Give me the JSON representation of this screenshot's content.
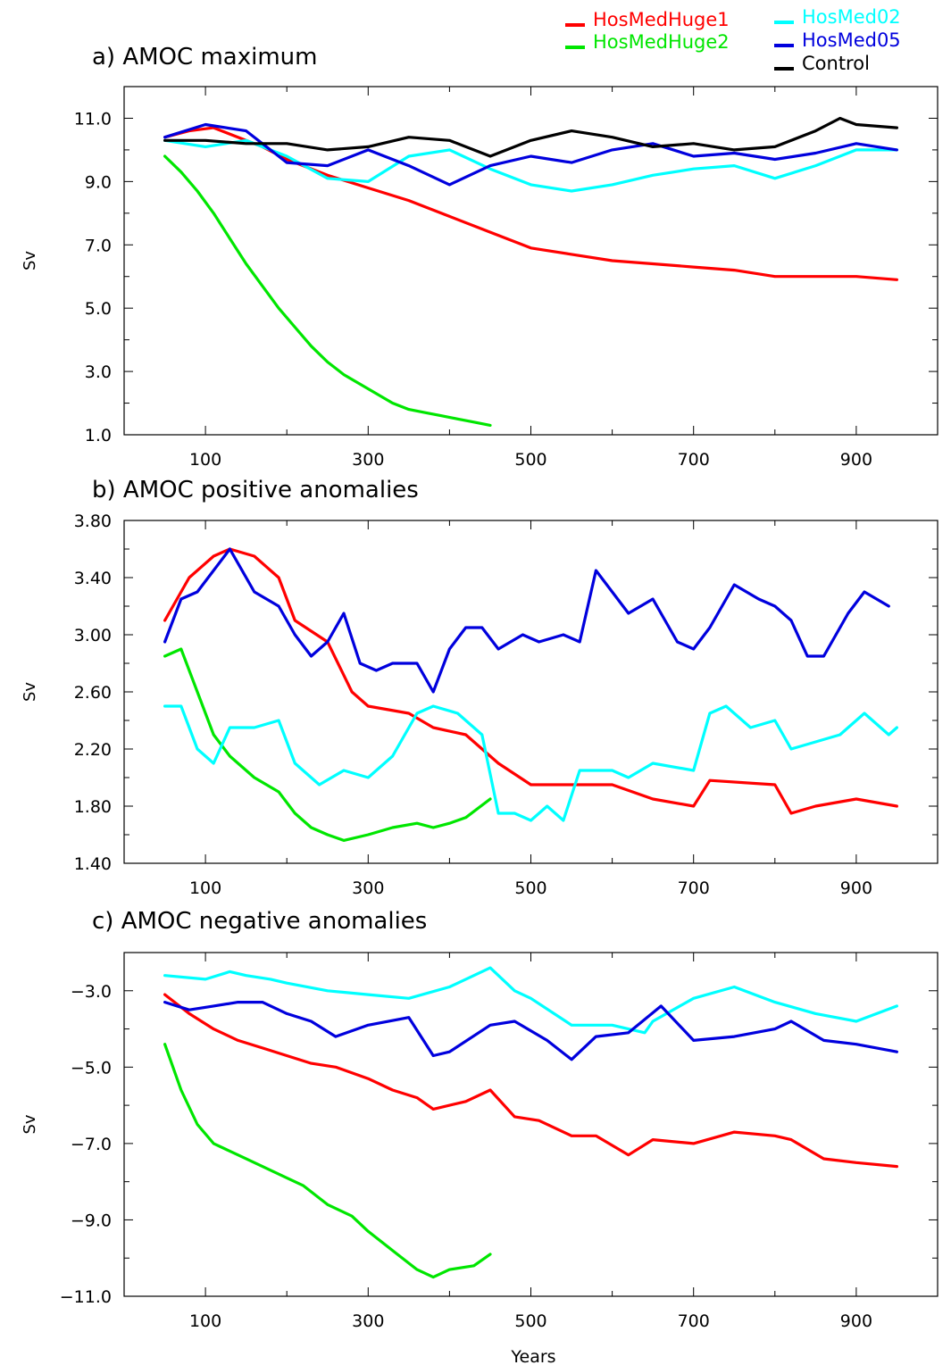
{
  "legend": {
    "items": [
      {
        "label": "HosMedHuge1",
        "color": "#ff0000"
      },
      {
        "label": "HosMedHuge2",
        "color": "#00e600"
      },
      {
        "label": "HosMed02",
        "color": "#00ffff"
      },
      {
        "label": "HosMed05",
        "color": "#0000dd"
      },
      {
        "label": "Control",
        "color": "#000000"
      }
    ],
    "placement": "top-right"
  },
  "chart_data": [
    {
      "type": "line",
      "title": "a) AMOC maximum",
      "xlabel": "",
      "ylabel": "Sv",
      "xlim": [
        0,
        1000
      ],
      "ylim": [
        1.0,
        12.0
      ],
      "xticks": [
        100,
        300,
        500,
        700,
        900
      ],
      "yticks": [
        1.0,
        3.0,
        5.0,
        7.0,
        9.0,
        11.0
      ],
      "ytick_labels": [
        "1.0",
        "3.0",
        "5.0",
        "7.0",
        "9.0",
        "11.0"
      ],
      "grid": false,
      "series": [
        {
          "name": "HosMedHuge1",
          "color": "#ff0000",
          "x": [
            50,
            80,
            110,
            140,
            170,
            200,
            250,
            300,
            350,
            400,
            450,
            500,
            550,
            600,
            650,
            700,
            750,
            800,
            850,
            900,
            950
          ],
          "y": [
            10.4,
            10.6,
            10.7,
            10.4,
            10.1,
            9.7,
            9.2,
            8.8,
            8.4,
            7.9,
            7.4,
            6.9,
            6.7,
            6.5,
            6.4,
            6.3,
            6.2,
            6.0,
            6.0,
            6.0,
            5.9
          ]
        },
        {
          "name": "HosMedHuge2",
          "color": "#00e600",
          "x": [
            50,
            70,
            90,
            110,
            130,
            150,
            170,
            190,
            210,
            230,
            250,
            270,
            290,
            310,
            330,
            350,
            370,
            390,
            410,
            430,
            450
          ],
          "y": [
            9.8,
            9.3,
            8.7,
            8.0,
            7.2,
            6.4,
            5.7,
            5.0,
            4.4,
            3.8,
            3.3,
            2.9,
            2.6,
            2.3,
            2.0,
            1.8,
            1.7,
            1.6,
            1.5,
            1.4,
            1.3
          ]
        },
        {
          "name": "HosMed02",
          "color": "#00ffff",
          "x": [
            50,
            100,
            150,
            200,
            250,
            300,
            350,
            400,
            450,
            500,
            550,
            600,
            650,
            700,
            750,
            800,
            850,
            900,
            950
          ],
          "y": [
            10.3,
            10.1,
            10.3,
            9.8,
            9.1,
            9.0,
            9.8,
            10.0,
            9.4,
            8.9,
            8.7,
            8.9,
            9.2,
            9.4,
            9.5,
            9.1,
            9.5,
            10.0,
            10.0
          ]
        },
        {
          "name": "HosMed05",
          "color": "#0000dd",
          "x": [
            50,
            100,
            150,
            200,
            250,
            300,
            350,
            400,
            450,
            500,
            550,
            600,
            650,
            700,
            750,
            800,
            850,
            900,
            950
          ],
          "y": [
            10.4,
            10.8,
            10.6,
            9.6,
            9.5,
            10.0,
            9.5,
            8.9,
            9.5,
            9.8,
            9.6,
            10.0,
            10.2,
            9.8,
            9.9,
            9.7,
            9.9,
            10.2,
            10.0
          ]
        },
        {
          "name": "Control",
          "color": "#000000",
          "x": [
            50,
            100,
            150,
            200,
            250,
            300,
            350,
            400,
            450,
            500,
            550,
            600,
            650,
            700,
            750,
            800,
            850,
            880,
            900,
            950
          ],
          "y": [
            10.3,
            10.3,
            10.2,
            10.2,
            10.0,
            10.1,
            10.4,
            10.3,
            9.8,
            10.3,
            10.6,
            10.4,
            10.1,
            10.2,
            10.0,
            10.1,
            10.6,
            11.0,
            10.8,
            10.7
          ]
        }
      ]
    },
    {
      "type": "line",
      "title": "b) AMOC positive anomalies",
      "xlabel": "",
      "ylabel": "Sv",
      "xlim": [
        0,
        1000
      ],
      "ylim": [
        1.4,
        3.8
      ],
      "xticks": [
        100,
        300,
        500,
        700,
        900
      ],
      "yticks": [
        1.4,
        1.8,
        2.2,
        2.6,
        3.0,
        3.4,
        3.8
      ],
      "ytick_labels": [
        "1.40",
        "1.80",
        "2.20",
        "2.60",
        "3.00",
        "3.40",
        "3.80"
      ],
      "grid": false,
      "series": [
        {
          "name": "HosMedHuge1",
          "color": "#ff0000",
          "x": [
            50,
            80,
            110,
            130,
            160,
            190,
            210,
            250,
            280,
            300,
            350,
            380,
            420,
            460,
            500,
            550,
            600,
            650,
            700,
            720,
            800,
            820,
            850,
            900,
            950
          ],
          "y": [
            3.1,
            3.4,
            3.55,
            3.6,
            3.55,
            3.4,
            3.1,
            2.95,
            2.6,
            2.5,
            2.45,
            2.35,
            2.3,
            2.1,
            1.95,
            1.95,
            1.95,
            1.85,
            1.8,
            1.98,
            1.95,
            1.75,
            1.8,
            1.85,
            1.8
          ]
        },
        {
          "name": "HosMedHuge2",
          "color": "#00e600",
          "x": [
            50,
            70,
            90,
            110,
            130,
            160,
            190,
            210,
            230,
            250,
            270,
            300,
            330,
            360,
            380,
            400,
            420,
            450
          ],
          "y": [
            2.85,
            2.9,
            2.6,
            2.3,
            2.15,
            2.0,
            1.9,
            1.75,
            1.65,
            1.6,
            1.56,
            1.6,
            1.65,
            1.68,
            1.65,
            1.68,
            1.72,
            1.85
          ]
        },
        {
          "name": "HosMed02",
          "color": "#00ffff",
          "x": [
            50,
            70,
            90,
            110,
            130,
            160,
            190,
            210,
            240,
            270,
            300,
            330,
            360,
            380,
            410,
            440,
            460,
            480,
            500,
            520,
            540,
            560,
            600,
            620,
            650,
            700,
            720,
            740,
            770,
            800,
            820,
            850,
            880,
            910,
            940,
            950
          ],
          "y": [
            2.5,
            2.5,
            2.2,
            2.1,
            2.35,
            2.35,
            2.4,
            2.1,
            1.95,
            2.05,
            2.0,
            2.15,
            2.45,
            2.5,
            2.45,
            2.3,
            1.75,
            1.75,
            1.7,
            1.8,
            1.7,
            2.05,
            2.05,
            2.0,
            2.1,
            2.05,
            2.45,
            2.5,
            2.35,
            2.4,
            2.2,
            2.25,
            2.3,
            2.45,
            2.3,
            2.35
          ]
        },
        {
          "name": "HosMed05",
          "color": "#0000dd",
          "x": [
            50,
            70,
            90,
            110,
            130,
            160,
            190,
            210,
            230,
            250,
            270,
            290,
            310,
            330,
            360,
            380,
            400,
            420,
            440,
            460,
            490,
            510,
            540,
            560,
            580,
            600,
            620,
            650,
            680,
            700,
            720,
            750,
            780,
            800,
            820,
            840,
            860,
            890,
            910,
            940
          ],
          "y": [
            2.95,
            3.25,
            3.3,
            3.45,
            3.6,
            3.3,
            3.2,
            3.0,
            2.85,
            2.95,
            3.15,
            2.8,
            2.75,
            2.8,
            2.8,
            2.6,
            2.9,
            3.05,
            3.05,
            2.9,
            3.0,
            2.95,
            3.0,
            2.95,
            3.45,
            3.3,
            3.15,
            3.25,
            2.95,
            2.9,
            3.05,
            3.35,
            3.25,
            3.2,
            3.1,
            2.85,
            2.85,
            3.15,
            3.3,
            3.2
          ]
        }
      ]
    },
    {
      "type": "line",
      "title": "c) AMOC negative anomalies",
      "xlabel": "Years",
      "ylabel": "Sv",
      "xlim": [
        0,
        1000
      ],
      "ylim": [
        -11.0,
        -2.0
      ],
      "xticks": [
        100,
        300,
        500,
        700,
        900
      ],
      "yticks": [
        -11.0,
        -9.0,
        -7.0,
        -5.0,
        -3.0
      ],
      "ytick_labels": [
        "−11.0",
        "−9.0",
        "−7.0",
        "−5.0",
        "−3.0"
      ],
      "grid": false,
      "series": [
        {
          "name": "HosMedHuge1",
          "color": "#ff0000",
          "x": [
            50,
            80,
            110,
            140,
            170,
            200,
            230,
            260,
            300,
            330,
            360,
            380,
            420,
            450,
            480,
            510,
            550,
            580,
            620,
            650,
            700,
            750,
            800,
            820,
            860,
            900,
            950
          ],
          "y": [
            -3.1,
            -3.6,
            -4.0,
            -4.3,
            -4.5,
            -4.7,
            -4.9,
            -5.0,
            -5.3,
            -5.6,
            -5.8,
            -6.1,
            -5.9,
            -5.6,
            -6.3,
            -6.4,
            -6.8,
            -6.8,
            -7.3,
            -6.9,
            -7.0,
            -6.7,
            -6.8,
            -6.9,
            -7.4,
            -7.5,
            -7.6
          ]
        },
        {
          "name": "HosMedHuge2",
          "color": "#00e600",
          "x": [
            50,
            70,
            90,
            110,
            140,
            170,
            200,
            220,
            250,
            280,
            300,
            330,
            360,
            380,
            400,
            430,
            450
          ],
          "y": [
            -4.4,
            -5.6,
            -6.5,
            -7.0,
            -7.3,
            -7.6,
            -7.9,
            -8.1,
            -8.6,
            -8.9,
            -9.3,
            -9.8,
            -10.3,
            -10.5,
            -10.3,
            -10.2,
            -9.9
          ]
        },
        {
          "name": "HosMed02",
          "color": "#00ffff",
          "x": [
            50,
            100,
            130,
            150,
            180,
            200,
            250,
            300,
            350,
            400,
            450,
            480,
            500,
            550,
            600,
            640,
            650,
            700,
            750,
            800,
            850,
            900,
            950
          ],
          "y": [
            -2.6,
            -2.7,
            -2.5,
            -2.6,
            -2.7,
            -2.8,
            -3.0,
            -3.1,
            -3.2,
            -2.9,
            -2.4,
            -3.0,
            -3.2,
            -3.9,
            -3.9,
            -4.1,
            -3.8,
            -3.2,
            -2.9,
            -3.3,
            -3.6,
            -3.8,
            -3.4
          ]
        },
        {
          "name": "HosMed05",
          "color": "#0000dd",
          "x": [
            50,
            80,
            110,
            140,
            170,
            200,
            230,
            260,
            300,
            350,
            380,
            400,
            450,
            480,
            520,
            550,
            580,
            620,
            660,
            700,
            750,
            800,
            820,
            860,
            900,
            950
          ],
          "y": [
            -3.3,
            -3.5,
            -3.4,
            -3.3,
            -3.3,
            -3.6,
            -3.8,
            -4.2,
            -3.9,
            -3.7,
            -4.7,
            -4.6,
            -3.9,
            -3.8,
            -4.3,
            -4.8,
            -4.2,
            -4.1,
            -3.4,
            -4.3,
            -4.2,
            -4.0,
            -3.8,
            -4.3,
            -4.4,
            -4.6
          ]
        }
      ]
    }
  ]
}
